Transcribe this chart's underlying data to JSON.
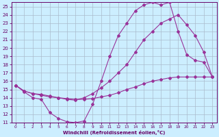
{
  "background_color": "#cceeff",
  "grid_color": "#aabbcc",
  "line_color": "#993399",
  "xlabel": "Windchill (Refroidissement éolien,°C)",
  "xlim": [
    -0.5,
    23.5
  ],
  "ylim": [
    11,
    25.5
  ],
  "xticks": [
    0,
    1,
    2,
    3,
    4,
    5,
    6,
    7,
    8,
    9,
    10,
    11,
    12,
    13,
    14,
    15,
    16,
    17,
    18,
    19,
    20,
    21,
    22,
    23
  ],
  "yticks": [
    11,
    12,
    13,
    14,
    15,
    16,
    17,
    18,
    19,
    20,
    21,
    22,
    23,
    24,
    25
  ],
  "curve1_x": [
    0,
    1,
    2,
    3,
    4,
    5,
    6,
    7,
    8,
    9,
    10,
    11,
    12,
    13,
    14,
    15,
    16,
    17,
    18,
    19,
    20,
    21,
    22,
    23
  ],
  "curve1_y": [
    15.5,
    14.7,
    14.0,
    13.8,
    12.2,
    11.5,
    11.1,
    11.0,
    11.2,
    13.2,
    16.0,
    19.0,
    21.5,
    23.0,
    24.5,
    25.2,
    25.5,
    25.2,
    25.5,
    22.0,
    19.2,
    18.5,
    18.3,
    16.5
  ],
  "curve2_x": [
    0,
    1,
    2,
    3,
    4,
    5,
    6,
    7,
    8,
    9,
    10,
    11,
    12,
    13,
    14,
    15,
    16,
    17,
    18,
    19,
    20,
    21,
    22,
    23
  ],
  "curve2_y": [
    15.5,
    14.8,
    14.5,
    14.3,
    14.1,
    14.0,
    13.8,
    13.7,
    14.0,
    14.5,
    15.2,
    16.0,
    17.0,
    18.0,
    19.5,
    21.0,
    22.0,
    23.0,
    23.5,
    24.0,
    22.8,
    21.5,
    19.5,
    16.5
  ],
  "curve3_x": [
    0,
    1,
    2,
    3,
    4,
    5,
    6,
    7,
    8,
    9,
    10,
    11,
    12,
    13,
    14,
    15,
    16,
    17,
    18,
    19,
    20,
    21,
    22,
    23
  ],
  "curve3_y": [
    15.5,
    14.8,
    14.5,
    14.4,
    14.2,
    14.0,
    13.9,
    13.8,
    13.8,
    13.9,
    14.1,
    14.3,
    14.6,
    15.0,
    15.3,
    15.7,
    16.0,
    16.2,
    16.4,
    16.5,
    16.5,
    16.5,
    16.5,
    16.5
  ]
}
